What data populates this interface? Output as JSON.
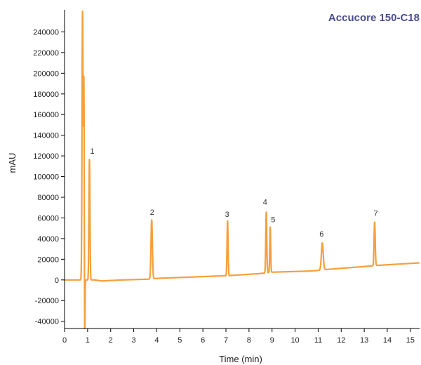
{
  "chart_data": {
    "type": "line",
    "title": "Accucore 150-C18",
    "xlabel": "Time (min)",
    "ylabel": "mAU",
    "xlim": [
      0,
      15.4
    ],
    "ylim": [
      -47000,
      260000
    ],
    "x_ticks": [
      "0",
      "1",
      "2",
      "3",
      "4",
      "5",
      "6",
      "7",
      "8",
      "9",
      "10",
      "11",
      "12",
      "13",
      "14",
      "15"
    ],
    "y_ticks": [
      "-40000",
      "-20000",
      "0",
      "20000",
      "40000",
      "60000",
      "80000",
      "100000",
      "120000",
      "140000",
      "160000",
      "180000",
      "200000",
      "220000",
      "240000"
    ],
    "grid": false,
    "colors": {
      "trace": "#F4A03C",
      "title": "#4B4E8F",
      "axis": "#000000"
    },
    "series": [
      {
        "baseline": [
          [
            0,
            0
          ],
          [
            0.75,
            0
          ],
          [
            1.3,
            0
          ],
          [
            1.6,
            -1000
          ],
          [
            2.5,
            0
          ],
          [
            3.6,
            700
          ],
          [
            4.0,
            1500
          ],
          [
            6.9,
            4000
          ],
          [
            7.1,
            4200
          ],
          [
            8.4,
            6000
          ],
          [
            8.6,
            6500
          ],
          [
            9.0,
            7500
          ],
          [
            10.5,
            8500
          ],
          [
            10.9,
            9000
          ],
          [
            11.3,
            10000
          ],
          [
            13.3,
            13500
          ],
          [
            13.5,
            14000
          ],
          [
            15.4,
            16500
          ]
        ],
        "peaks": [
          {
            "rt": 0.78,
            "height": 260000,
            "width": 0.022
          },
          {
            "rt": 0.84,
            "height": 196000,
            "width": 0.018
          },
          {
            "rt": 0.87,
            "height": -85000,
            "width": 0.014
          },
          {
            "rt": 1.08,
            "height": 117000,
            "width": 0.022
          },
          {
            "rt": 3.78,
            "height": 57000,
            "width": 0.03
          },
          {
            "rt": 7.07,
            "height": 53000,
            "width": 0.022
          },
          {
            "rt": 8.75,
            "height": 59000,
            "width": 0.022
          },
          {
            "rt": 8.92,
            "height": 44000,
            "width": 0.02
          },
          {
            "rt": 11.18,
            "height": 26000,
            "width": 0.04
          },
          {
            "rt": 13.45,
            "height": 42000,
            "width": 0.025
          }
        ]
      }
    ],
    "annotations": [
      {
        "text": "1",
        "x": 1.2,
        "y": 122000
      },
      {
        "text": "2",
        "x": 3.8,
        "y": 63000
      },
      {
        "text": "3",
        "x": 7.05,
        "y": 61000
      },
      {
        "text": "4",
        "x": 8.7,
        "y": 73000
      },
      {
        "text": "5",
        "x": 9.05,
        "y": 56000
      },
      {
        "text": "6",
        "x": 11.15,
        "y": 42000
      },
      {
        "text": "7",
        "x": 13.5,
        "y": 62000
      }
    ]
  }
}
